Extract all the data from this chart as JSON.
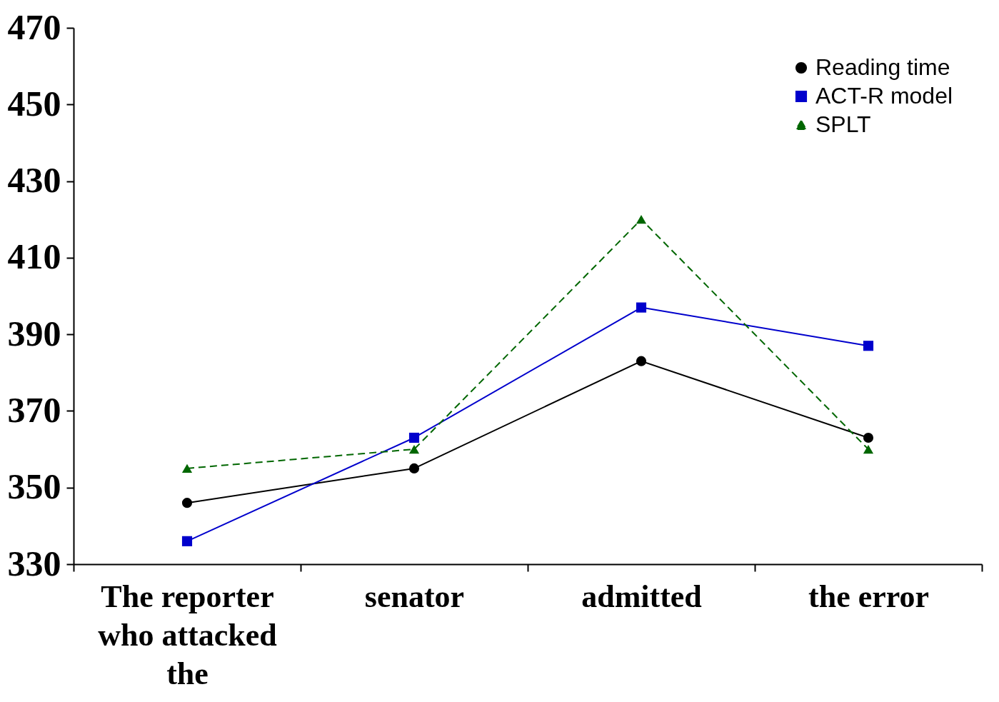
{
  "chart_data": {
    "type": "line",
    "categories": [
      "The reporter who attacked the",
      "senator",
      "admitted",
      "the error"
    ],
    "series": [
      {
        "name": "Reading time",
        "color": "#000000",
        "marker": "circle",
        "line_style": "solid",
        "values": [
          346,
          355,
          383,
          363
        ]
      },
      {
        "name": "ACT-R model",
        "color": "#0000cc",
        "marker": "square",
        "line_style": "solid",
        "values": [
          336,
          363,
          397,
          387
        ]
      },
      {
        "name": "SPLT",
        "color": "#006600",
        "marker": "triangle",
        "line_style": "dashed",
        "values": [
          355,
          360,
          420,
          360
        ]
      }
    ],
    "ylim": [
      330,
      470
    ],
    "yticks": [
      330,
      350,
      370,
      390,
      410,
      430,
      450,
      470
    ],
    "grid": false,
    "legend": "top right"
  }
}
